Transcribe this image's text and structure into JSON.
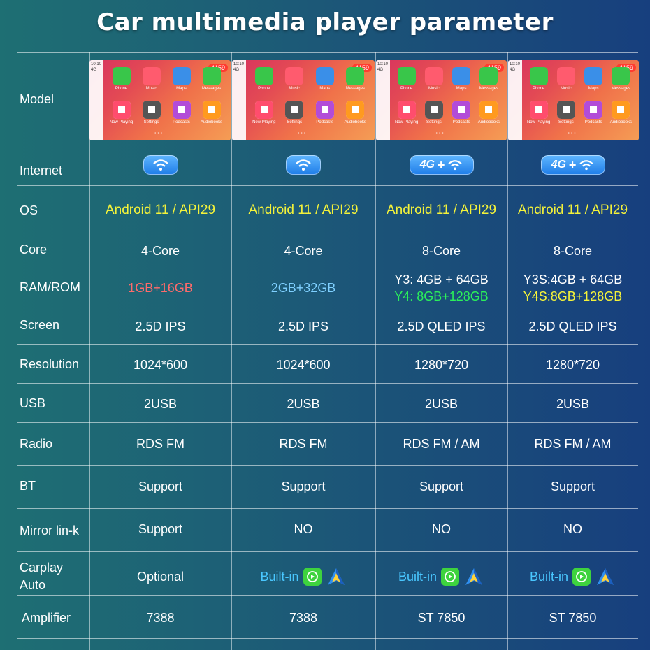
{
  "title": "Car multimedia player parameter",
  "screenshot": {
    "time": "10:10",
    "signal": "4G",
    "badge": "4159",
    "apps": [
      "Phone",
      "Music",
      "Maps",
      "Messages",
      "Now Playing",
      "Settings",
      "Podcasts",
      "Audiobooks"
    ]
  },
  "rows": [
    {
      "label": "Model"
    },
    {
      "label": "Internet"
    },
    {
      "label": "OS",
      "values": [
        "Android 11 / API29",
        "Android 11 / API29",
        "Android 11 / API29",
        "Android 11 / API29"
      ]
    },
    {
      "label": "Core",
      "values": [
        "4-Core",
        "4-Core",
        "8-Core",
        "8-Core"
      ]
    },
    {
      "label": "RAM/ROM",
      "values": [
        "1GB+16GB",
        "2GB+32GB",
        "Y3: 4GB + 64GB",
        "Y3S:4GB + 64GB"
      ],
      "values2": [
        "",
        "",
        "Y4: 8GB+128GB",
        "Y4S:8GB+128GB"
      ]
    },
    {
      "label": "Screen",
      "values": [
        "2.5D  IPS",
        "2.5D  IPS",
        "2.5D QLED IPS",
        "2.5D QLED IPS"
      ]
    },
    {
      "label": "Resolution",
      "values": [
        "1024*600",
        "1024*600",
        "1280*720",
        "1280*720"
      ]
    },
    {
      "label": "USB",
      "values": [
        "2USB",
        "2USB",
        "2USB",
        "2USB"
      ]
    },
    {
      "label": "Radio",
      "values": [
        "RDS FM",
        "RDS FM",
        "RDS FM / AM",
        "RDS FM / AM"
      ]
    },
    {
      "label": "BT",
      "values": [
        "Support",
        "Support",
        "Support",
        "Support"
      ]
    },
    {
      "label": "Mirror lin-k",
      "values": [
        "Support",
        "NO",
        "NO",
        "NO"
      ]
    },
    {
      "label": "Carplay\nAuto",
      "values": [
        "Optional",
        "Built-in",
        "Built-in",
        "Built-in"
      ]
    },
    {
      "label": "Amplifier",
      "values": [
        "7388",
        "7388",
        "ST 7850",
        "ST 7850"
      ]
    }
  ],
  "internet": [
    "wifi",
    "wifi",
    "4G",
    "4G"
  ],
  "colors": {
    "os": "#f4f23a",
    "ram_red": "#ff6b6b",
    "ram_blue": "#7fd0ff",
    "ram_green": "#2bf05a",
    "ram_yellow": "#f4f23a",
    "builtin": "#49c7ff"
  }
}
